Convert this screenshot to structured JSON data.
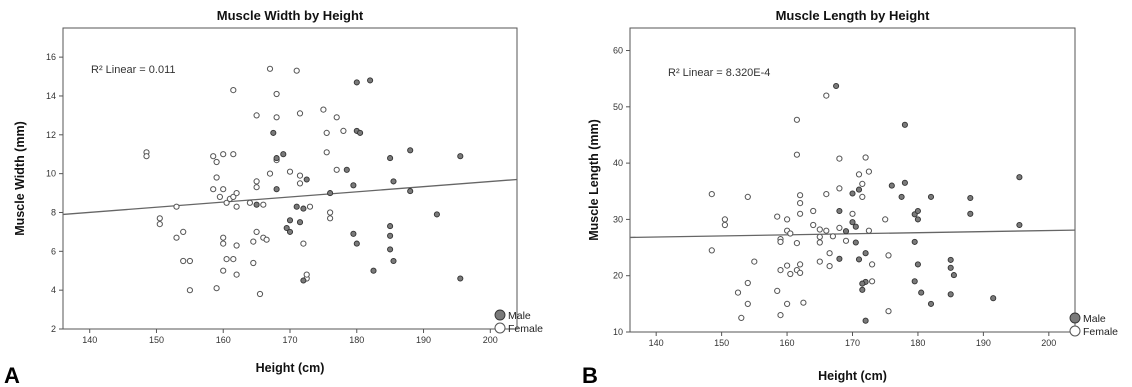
{
  "chart_data": [
    {
      "type": "scatter",
      "panel_label": "A",
      "title": "Muscle Width by Height",
      "xlabel": "Height (cm)",
      "ylabel": "Muscle Width (mm)",
      "xlim": [
        136,
        204
      ],
      "ylim": [
        2,
        17.5
      ],
      "xticks": [
        140,
        150,
        160,
        170,
        180,
        190,
        200
      ],
      "yticks": [
        2,
        4,
        6,
        8,
        10,
        12,
        14,
        16
      ],
      "annotation": "R² Linear = 0.011",
      "fit_line": [
        [
          136,
          7.9
        ],
        [
          204,
          9.7
        ]
      ],
      "legend": {
        "position": "bottom-right",
        "entries": [
          "Male",
          "Female"
        ]
      },
      "series": [
        {
          "name": "Male",
          "points": [
            [
              167.5,
              12.1
            ],
            [
              169,
              11.0
            ],
            [
              168,
              10.8
            ],
            [
              170,
              7.6
            ],
            [
              171,
              8.3
            ],
            [
              172,
              8.2
            ],
            [
              172.5,
              9.7
            ],
            [
              169.5,
              7.2
            ],
            [
              170,
              7.0
            ],
            [
              171.5,
              7.5
            ],
            [
              172,
              4.5
            ],
            [
              165,
              8.4
            ],
            [
              168,
              9.2
            ],
            [
              176,
              9.0
            ],
            [
              178.5,
              10.2
            ],
            [
              179.5,
              9.4
            ],
            [
              180,
              12.2
            ],
            [
              180.5,
              12.1
            ],
            [
              180,
              14.7
            ],
            [
              182,
              14.8
            ],
            [
              179.5,
              6.9
            ],
            [
              180,
              6.4
            ],
            [
              182.5,
              5.0
            ],
            [
              185,
              10.8
            ],
            [
              185.5,
              9.6
            ],
            [
              185,
              7.3
            ],
            [
              185,
              6.8
            ],
            [
              185,
              6.1
            ],
            [
              185.5,
              5.5
            ],
            [
              188,
              11.2
            ],
            [
              188,
              9.1
            ],
            [
              192,
              7.9
            ],
            [
              195.5,
              10.9
            ],
            [
              195.5,
              4.6
            ]
          ]
        },
        {
          "name": "Female",
          "points": [
            [
              148.5,
              11.1
            ],
            [
              148.5,
              10.9
            ],
            [
              150.5,
              7.7
            ],
            [
              150.5,
              7.4
            ],
            [
              153,
              8.3
            ],
            [
              153,
              6.7
            ],
            [
              154,
              7.0
            ],
            [
              154,
              5.5
            ],
            [
              155,
              5.5
            ],
            [
              155,
              4.0
            ],
            [
              158.5,
              10.9
            ],
            [
              159,
              10.6
            ],
            [
              159,
              9.8
            ],
            [
              160,
              11.0
            ],
            [
              160,
              9.2
            ],
            [
              159.5,
              8.8
            ],
            [
              160.5,
              8.5
            ],
            [
              161,
              8.7
            ],
            [
              158.5,
              9.2
            ],
            [
              160,
              6.7
            ],
            [
              160,
              6.4
            ],
            [
              160.5,
              5.6
            ],
            [
              160,
              5.0
            ],
            [
              159,
              4.1
            ],
            [
              161.5,
              14.3
            ],
            [
              161.5,
              11.0
            ],
            [
              161.5,
              8.8
            ],
            [
              162,
              8.3
            ],
            [
              162,
              9.0
            ],
            [
              162,
              6.3
            ],
            [
              161.5,
              5.6
            ],
            [
              162,
              4.8
            ],
            [
              164,
              8.5
            ],
            [
              165,
              9.3
            ],
            [
              165,
              9.6
            ],
            [
              165,
              7.0
            ],
            [
              164.5,
              6.5
            ],
            [
              164.5,
              5.4
            ],
            [
              165.5,
              3.8
            ],
            [
              165,
              13.0
            ],
            [
              166,
              8.4
            ],
            [
              166,
              6.7
            ],
            [
              166.5,
              6.6
            ],
            [
              167,
              10.0
            ],
            [
              167,
              15.4
            ],
            [
              168,
              14.1
            ],
            [
              168,
              12.9
            ],
            [
              168,
              10.7
            ],
            [
              170,
              10.1
            ],
            [
              171,
              15.3
            ],
            [
              171.5,
              13.1
            ],
            [
              171.5,
              9.9
            ],
            [
              171.5,
              9.5
            ],
            [
              172,
              6.4
            ],
            [
              172.5,
              4.6
            ],
            [
              172.5,
              4.8
            ],
            [
              173,
              8.3
            ],
            [
              175,
              13.3
            ],
            [
              175.5,
              12.1
            ],
            [
              175.5,
              11.1
            ],
            [
              176,
              8.0
            ],
            [
              176,
              7.7
            ],
            [
              177,
              10.2
            ],
            [
              177,
              12.9
            ],
            [
              178,
              12.2
            ]
          ]
        }
      ]
    },
    {
      "type": "scatter",
      "panel_label": "B",
      "title": "Muscle Length by Height",
      "xlabel": "Height (cm)",
      "ylabel": "Muscle Length (mm)",
      "xlim": [
        136,
        204
      ],
      "ylim": [
        10,
        64
      ],
      "xticks": [
        140,
        150,
        160,
        170,
        180,
        190,
        200
      ],
      "yticks": [
        10,
        20,
        30,
        40,
        50,
        60
      ],
      "annotation": "R² Linear = 8.320E-4",
      "fit_line": [
        [
          136,
          26.8
        ],
        [
          204,
          28.1
        ]
      ],
      "legend": {
        "position": "bottom-right",
        "entries": [
          "Male",
          "Female"
        ]
      },
      "series": [
        {
          "name": "Male",
          "points": [
            [
              167.5,
              53.7
            ],
            [
              178,
              46.8
            ],
            [
              170,
              34.6
            ],
            [
              171,
              35.3
            ],
            [
              170,
              29.5
            ],
            [
              170.5,
              28.7
            ],
            [
              169,
              27.9
            ],
            [
              170.5,
              25.9
            ],
            [
              172,
              24.0
            ],
            [
              171,
              22.9
            ],
            [
              172,
              18.9
            ],
            [
              171.5,
              18.6
            ],
            [
              171.5,
              17.5
            ],
            [
              172,
              12.0
            ],
            [
              168,
              23.0
            ],
            [
              168,
              31.5
            ],
            [
              176,
              36.0
            ],
            [
              177.5,
              34.0
            ],
            [
              178,
              36.5
            ],
            [
              179.5,
              30.9
            ],
            [
              180,
              31.5
            ],
            [
              180,
              30.0
            ],
            [
              179.5,
              26.0
            ],
            [
              180,
              22.0
            ],
            [
              179.5,
              19.0
            ],
            [
              180.5,
              17.0
            ],
            [
              182,
              34.0
            ],
            [
              182,
              15.0
            ],
            [
              185,
              22.8
            ],
            [
              185,
              21.4
            ],
            [
              185.5,
              20.1
            ],
            [
              185,
              16.7
            ],
            [
              188,
              33.8
            ],
            [
              188,
              31.0
            ],
            [
              191.5,
              16.0
            ],
            [
              195.5,
              37.5
            ],
            [
              195.5,
              29.0
            ]
          ]
        },
        {
          "name": "Female",
          "points": [
            [
              148.5,
              34.5
            ],
            [
              148.5,
              24.5
            ],
            [
              150.5,
              30.0
            ],
            [
              150.5,
              29.0
            ],
            [
              152.5,
              17.0
            ],
            [
              153,
              12.5
            ],
            [
              154,
              34.0
            ],
            [
              154,
              18.7
            ],
            [
              154,
              15.0
            ],
            [
              155,
              22.5
            ],
            [
              158.5,
              30.5
            ],
            [
              159,
              26.5
            ],
            [
              159,
              26.0
            ],
            [
              159,
              21.0
            ],
            [
              158.5,
              17.3
            ],
            [
              159,
              13.0
            ],
            [
              160,
              30.0
            ],
            [
              160,
              28.0
            ],
            [
              160.5,
              27.5
            ],
            [
              160,
              21.8
            ],
            [
              160.5,
              20.3
            ],
            [
              160,
              15.0
            ],
            [
              161.5,
              47.7
            ],
            [
              161.5,
              41.5
            ],
            [
              162,
              34.3
            ],
            [
              162,
              32.9
            ],
            [
              162,
              31.0
            ],
            [
              161.5,
              25.8
            ],
            [
              162,
              22.0
            ],
            [
              161.5,
              21.0
            ],
            [
              162,
              20.5
            ],
            [
              162.5,
              15.2
            ],
            [
              164,
              31.5
            ],
            [
              164,
              29.0
            ],
            [
              165,
              28.2
            ],
            [
              165,
              26.9
            ],
            [
              165,
              25.9
            ],
            [
              165,
              22.5
            ],
            [
              166,
              52.0
            ],
            [
              166,
              34.5
            ],
            [
              166,
              28.0
            ],
            [
              166.5,
              24.0
            ],
            [
              166.5,
              21.7
            ],
            [
              167,
              27.0
            ],
            [
              168,
              40.8
            ],
            [
              168,
              35.5
            ],
            [
              168,
              28.5
            ],
            [
              169,
              26.2
            ],
            [
              170,
              31.0
            ],
            [
              171,
              38.0
            ],
            [
              171.5,
              36.3
            ],
            [
              171.5,
              34.0
            ],
            [
              172,
              41.0
            ],
            [
              172.5,
              38.5
            ],
            [
              172.5,
              28.0
            ],
            [
              173,
              22.0
            ],
            [
              173,
              19.0
            ],
            [
              175,
              30.0
            ],
            [
              175.5,
              23.6
            ],
            [
              175.5,
              13.7
            ]
          ]
        }
      ]
    }
  ]
}
